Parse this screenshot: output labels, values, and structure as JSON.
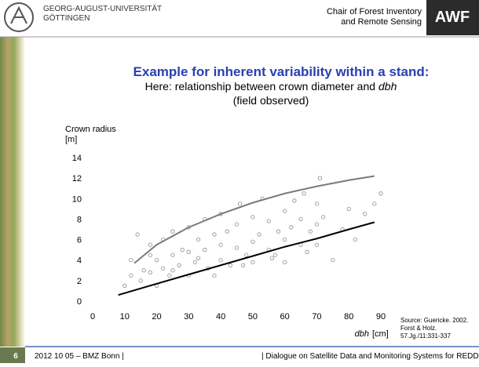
{
  "header": {
    "university": [
      "GEORG-AUGUST-UNIVERSITÄT",
      "GÖTTINGEN"
    ],
    "chair": [
      "Chair of Forest Inventory",
      "and Remote Sensing"
    ],
    "logo": "AWF"
  },
  "slide": {
    "title": "Example for inherent variability within a stand:",
    "subtitle_line1": [
      "Here: relationship between crown diameter and",
      "dbh"
    ],
    "subtitle_line2": "(field observed)"
  },
  "source": [
    "Source: Guericke. 2002.",
    "Forst & Holz.",
    "57.Jg./11:331-337"
  ],
  "footer": {
    "page": "6",
    "date": "2012 10 05 – BMZ Bonn |",
    "event": "| Dialogue on Satellite Data and Monitoring Systems for REDD+"
  },
  "chart_data": {
    "type": "scatter",
    "ylabel": [
      "Crown radius",
      "[m]"
    ],
    "xlabel": [
      "dbh",
      "[cm]"
    ],
    "xlim": [
      0,
      90
    ],
    "ylim": [
      0,
      14
    ],
    "xticks": [
      0,
      10,
      20,
      30,
      40,
      50,
      60,
      70,
      80,
      90
    ],
    "yticks": [
      0,
      2,
      4,
      6,
      8,
      10,
      12,
      14
    ],
    "series": [
      {
        "type": "scatter",
        "color": "#8a8a8a",
        "x": [
          10,
          12,
          14,
          15,
          16,
          18,
          18,
          20,
          20,
          22,
          22,
          24,
          25,
          25,
          27,
          28,
          30,
          30,
          30,
          32,
          33,
          35,
          35,
          36,
          38,
          40,
          40,
          40,
          42,
          43,
          45,
          45,
          46,
          48,
          50,
          50,
          50,
          52,
          53,
          55,
          55,
          56,
          58,
          60,
          60,
          60,
          62,
          63,
          65,
          65,
          66,
          68,
          70,
          70,
          70,
          72,
          75,
          78,
          80,
          82,
          85,
          88,
          90,
          12,
          18,
          25,
          33,
          38,
          47,
          57,
          67,
          71
        ],
        "values": [
          1.5,
          2.5,
          6.5,
          2.0,
          3.0,
          2.8,
          5.5,
          1.5,
          4.0,
          3.2,
          6.0,
          2.5,
          4.5,
          6.8,
          3.5,
          5.0,
          2.5,
          4.8,
          7.2,
          3.8,
          6.0,
          5.0,
          8.0,
          3.2,
          6.5,
          4.0,
          5.5,
          8.5,
          6.8,
          3.5,
          5.2,
          7.5,
          9.5,
          4.5,
          5.8,
          3.8,
          8.2,
          6.5,
          10.0,
          5.0,
          7.8,
          4.2,
          6.8,
          6.0,
          8.8,
          3.8,
          7.2,
          9.8,
          5.5,
          8.0,
          10.5,
          6.8,
          7.5,
          5.5,
          9.5,
          8.2,
          4.0,
          7.0,
          9.0,
          6.0,
          8.5,
          9.5,
          10.5,
          4.0,
          4.5,
          3.0,
          4.2,
          2.5,
          3.5,
          4.5,
          4.8,
          12.0
        ]
      },
      {
        "type": "line",
        "color": "#7a7a7a",
        "x": [
          13,
          20,
          30,
          40,
          50,
          60,
          70,
          80,
          88
        ],
        "values": [
          3.7,
          5.5,
          7.2,
          8.5,
          9.6,
          10.5,
          11.2,
          11.8,
          12.2
        ]
      },
      {
        "type": "line",
        "color": "#000000",
        "x": [
          8,
          20,
          30,
          40,
          50,
          60,
          70,
          80,
          88
        ],
        "values": [
          0.6,
          1.7,
          2.6,
          3.5,
          4.4,
          5.3,
          6.1,
          7.0,
          7.7
        ]
      }
    ]
  }
}
